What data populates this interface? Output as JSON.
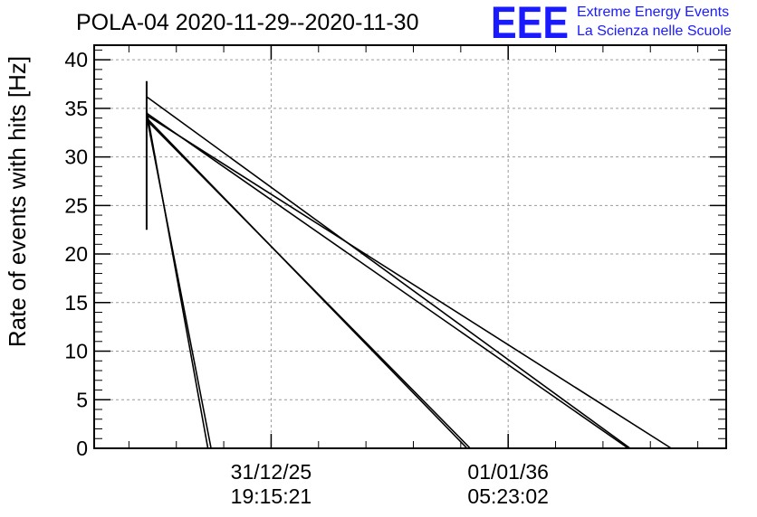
{
  "chart_data": {
    "type": "line",
    "title": "POLA-04 2020-11-29--2020-11-30",
    "ylabel": "Rate of events with hits [Hz]",
    "xlabel": "",
    "ylim": [
      0,
      41.5
    ],
    "yticks": [
      0,
      5,
      10,
      15,
      20,
      25,
      30,
      35,
      40
    ],
    "xlim": [
      0,
      100
    ],
    "xticks": [
      {
        "x": 28.0,
        "label_date": "31/12/25",
        "label_time": "19:15:21"
      },
      {
        "x": 65.5,
        "label_date": "01/01/36",
        "label_time": "05:23:02"
      }
    ],
    "grid": true,
    "error_bar": {
      "x": 8.3,
      "y_low": 22.5,
      "y_high": 37.8
    },
    "series": [
      {
        "values": [
          [
            8.3,
            34.8
          ],
          [
            18.0,
            0
          ]
        ]
      },
      {
        "values": [
          [
            8.3,
            34.2
          ],
          [
            18.5,
            0
          ]
        ]
      },
      {
        "values": [
          [
            8.3,
            34.0
          ],
          [
            59.0,
            0
          ]
        ]
      },
      {
        "values": [
          [
            8.3,
            33.8
          ],
          [
            59.5,
            0
          ]
        ]
      },
      {
        "values": [
          [
            8.3,
            36.2
          ],
          [
            84.8,
            0
          ]
        ]
      },
      {
        "values": [
          [
            8.3,
            34.5
          ],
          [
            84.5,
            0
          ]
        ]
      },
      {
        "values": [
          [
            8.3,
            34.3
          ],
          [
            91.3,
            0
          ]
        ]
      }
    ],
    "logo": {
      "mark": "EEE",
      "line1": "Extreme Energy Events",
      "line2": "La Scienza nelle Scuole",
      "color": "#1a1aff"
    }
  }
}
